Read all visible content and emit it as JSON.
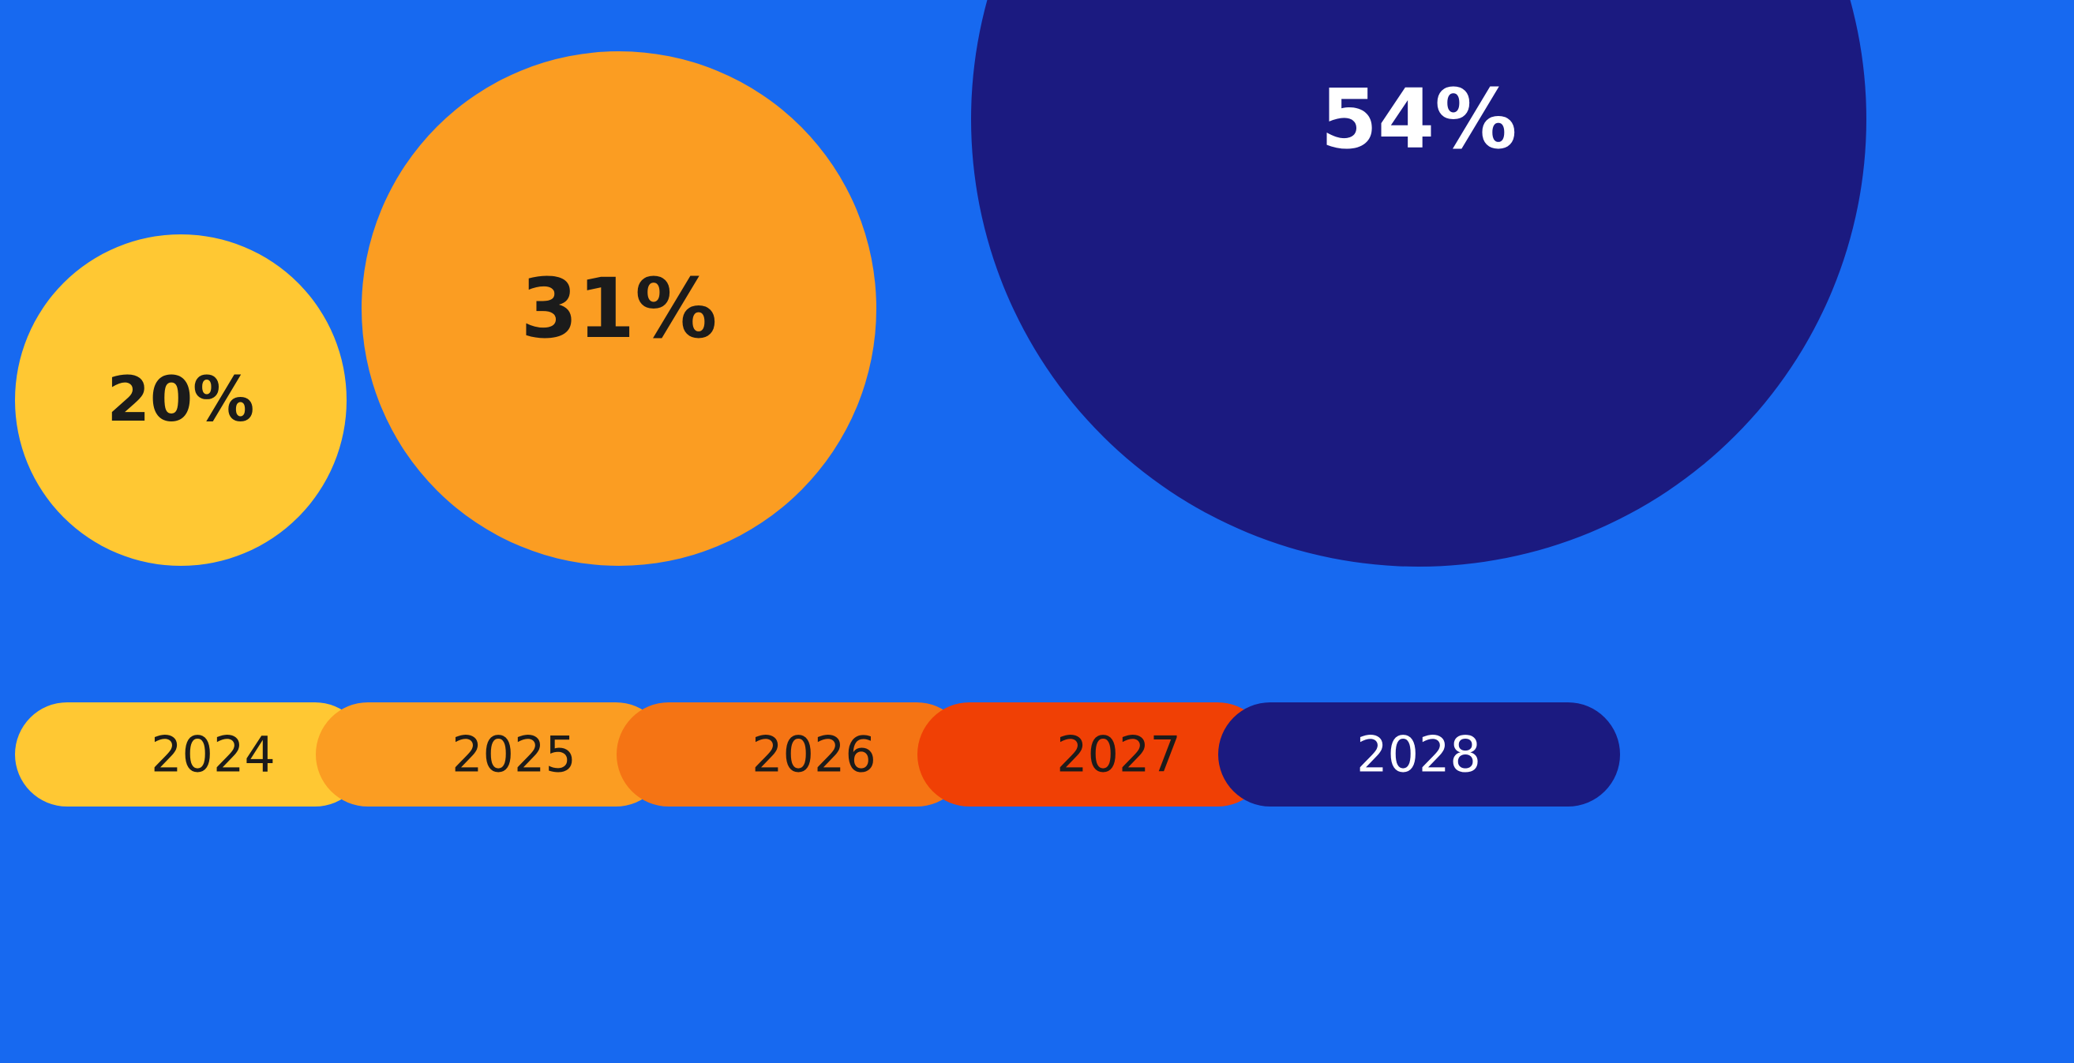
{
  "chart_data": {
    "type": "bubble",
    "bubbles": [
      {
        "label": "20%",
        "value": 20,
        "color": "#ffc833",
        "text_color": "#1b1b1b"
      },
      {
        "label": "31%",
        "value": 31,
        "color": "#fb9d22",
        "text_color": "#1b1b1b"
      },
      {
        "label": "54%",
        "value": 54,
        "color": "#1b1a80",
        "text_color": "#ffffff"
      }
    ],
    "timeline": [
      {
        "label": "2024",
        "color": "#ffc833",
        "text_color": "#1b1b1b"
      },
      {
        "label": "2025",
        "color": "#fb9d22",
        "text_color": "#1b1b1b"
      },
      {
        "label": "2026",
        "color": "#f57414",
        "text_color": "#1b1b1b"
      },
      {
        "label": "2027",
        "color": "#f04005",
        "text_color": "#1b1b1b"
      },
      {
        "label": "2028",
        "color": "#1b1a80",
        "text_color": "#ffffff"
      }
    ]
  },
  "background_color": "#1769f0"
}
